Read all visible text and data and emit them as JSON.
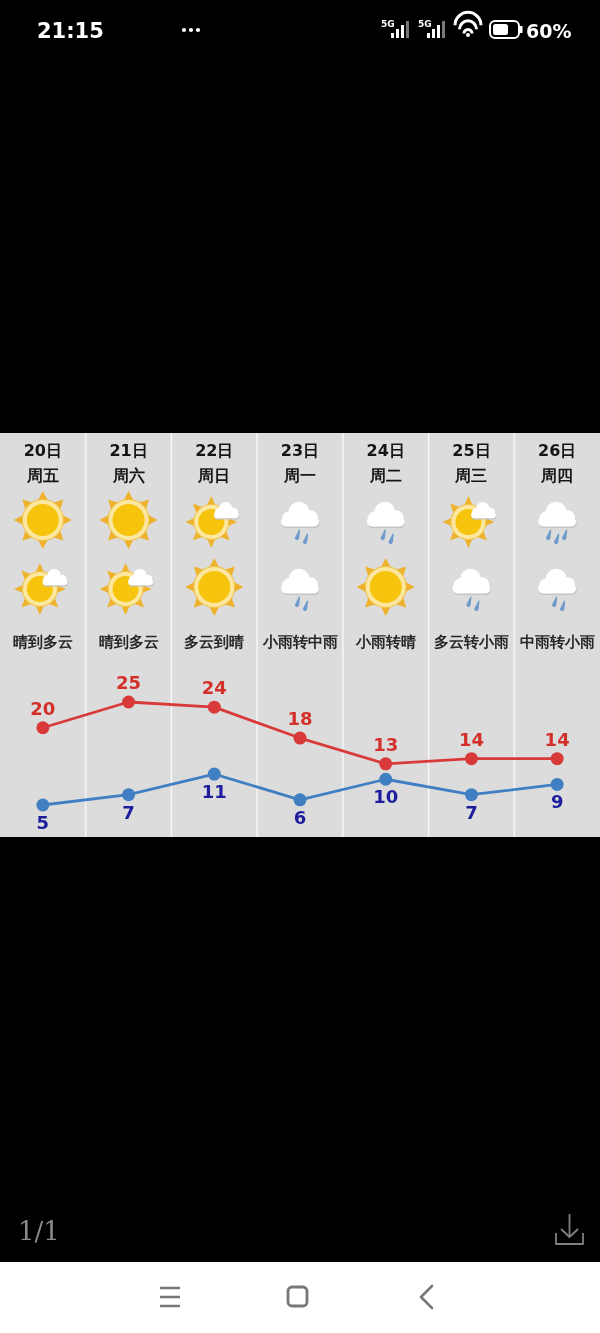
{
  "chart_data": {
    "type": "line",
    "categories": [
      "20日周五",
      "21日周六",
      "22日周日",
      "23日周一",
      "24日周二",
      "25日周三",
      "26日周四"
    ],
    "series": [
      {
        "color": "#d83a3a",
        "values": [
          20,
          25,
          24,
          18,
          13,
          14,
          14
        ]
      },
      {
        "color": "#3f7fc2",
        "values": [
          5,
          7,
          11,
          6,
          10,
          7,
          9
        ]
      }
    ],
    "marker": "circle",
    "line_style": "solid",
    "data_labels": true,
    "grid": "x",
    "annotations": [
      "晴到多云",
      "晴到多云",
      "多云到晴",
      "小雨转中雨",
      "小雨转晴",
      "多云转小雨",
      "中雨转小雨",
      "21:15",
      "5G",
      "5G",
      "60%",
      "1/1"
    ]
  }
}
